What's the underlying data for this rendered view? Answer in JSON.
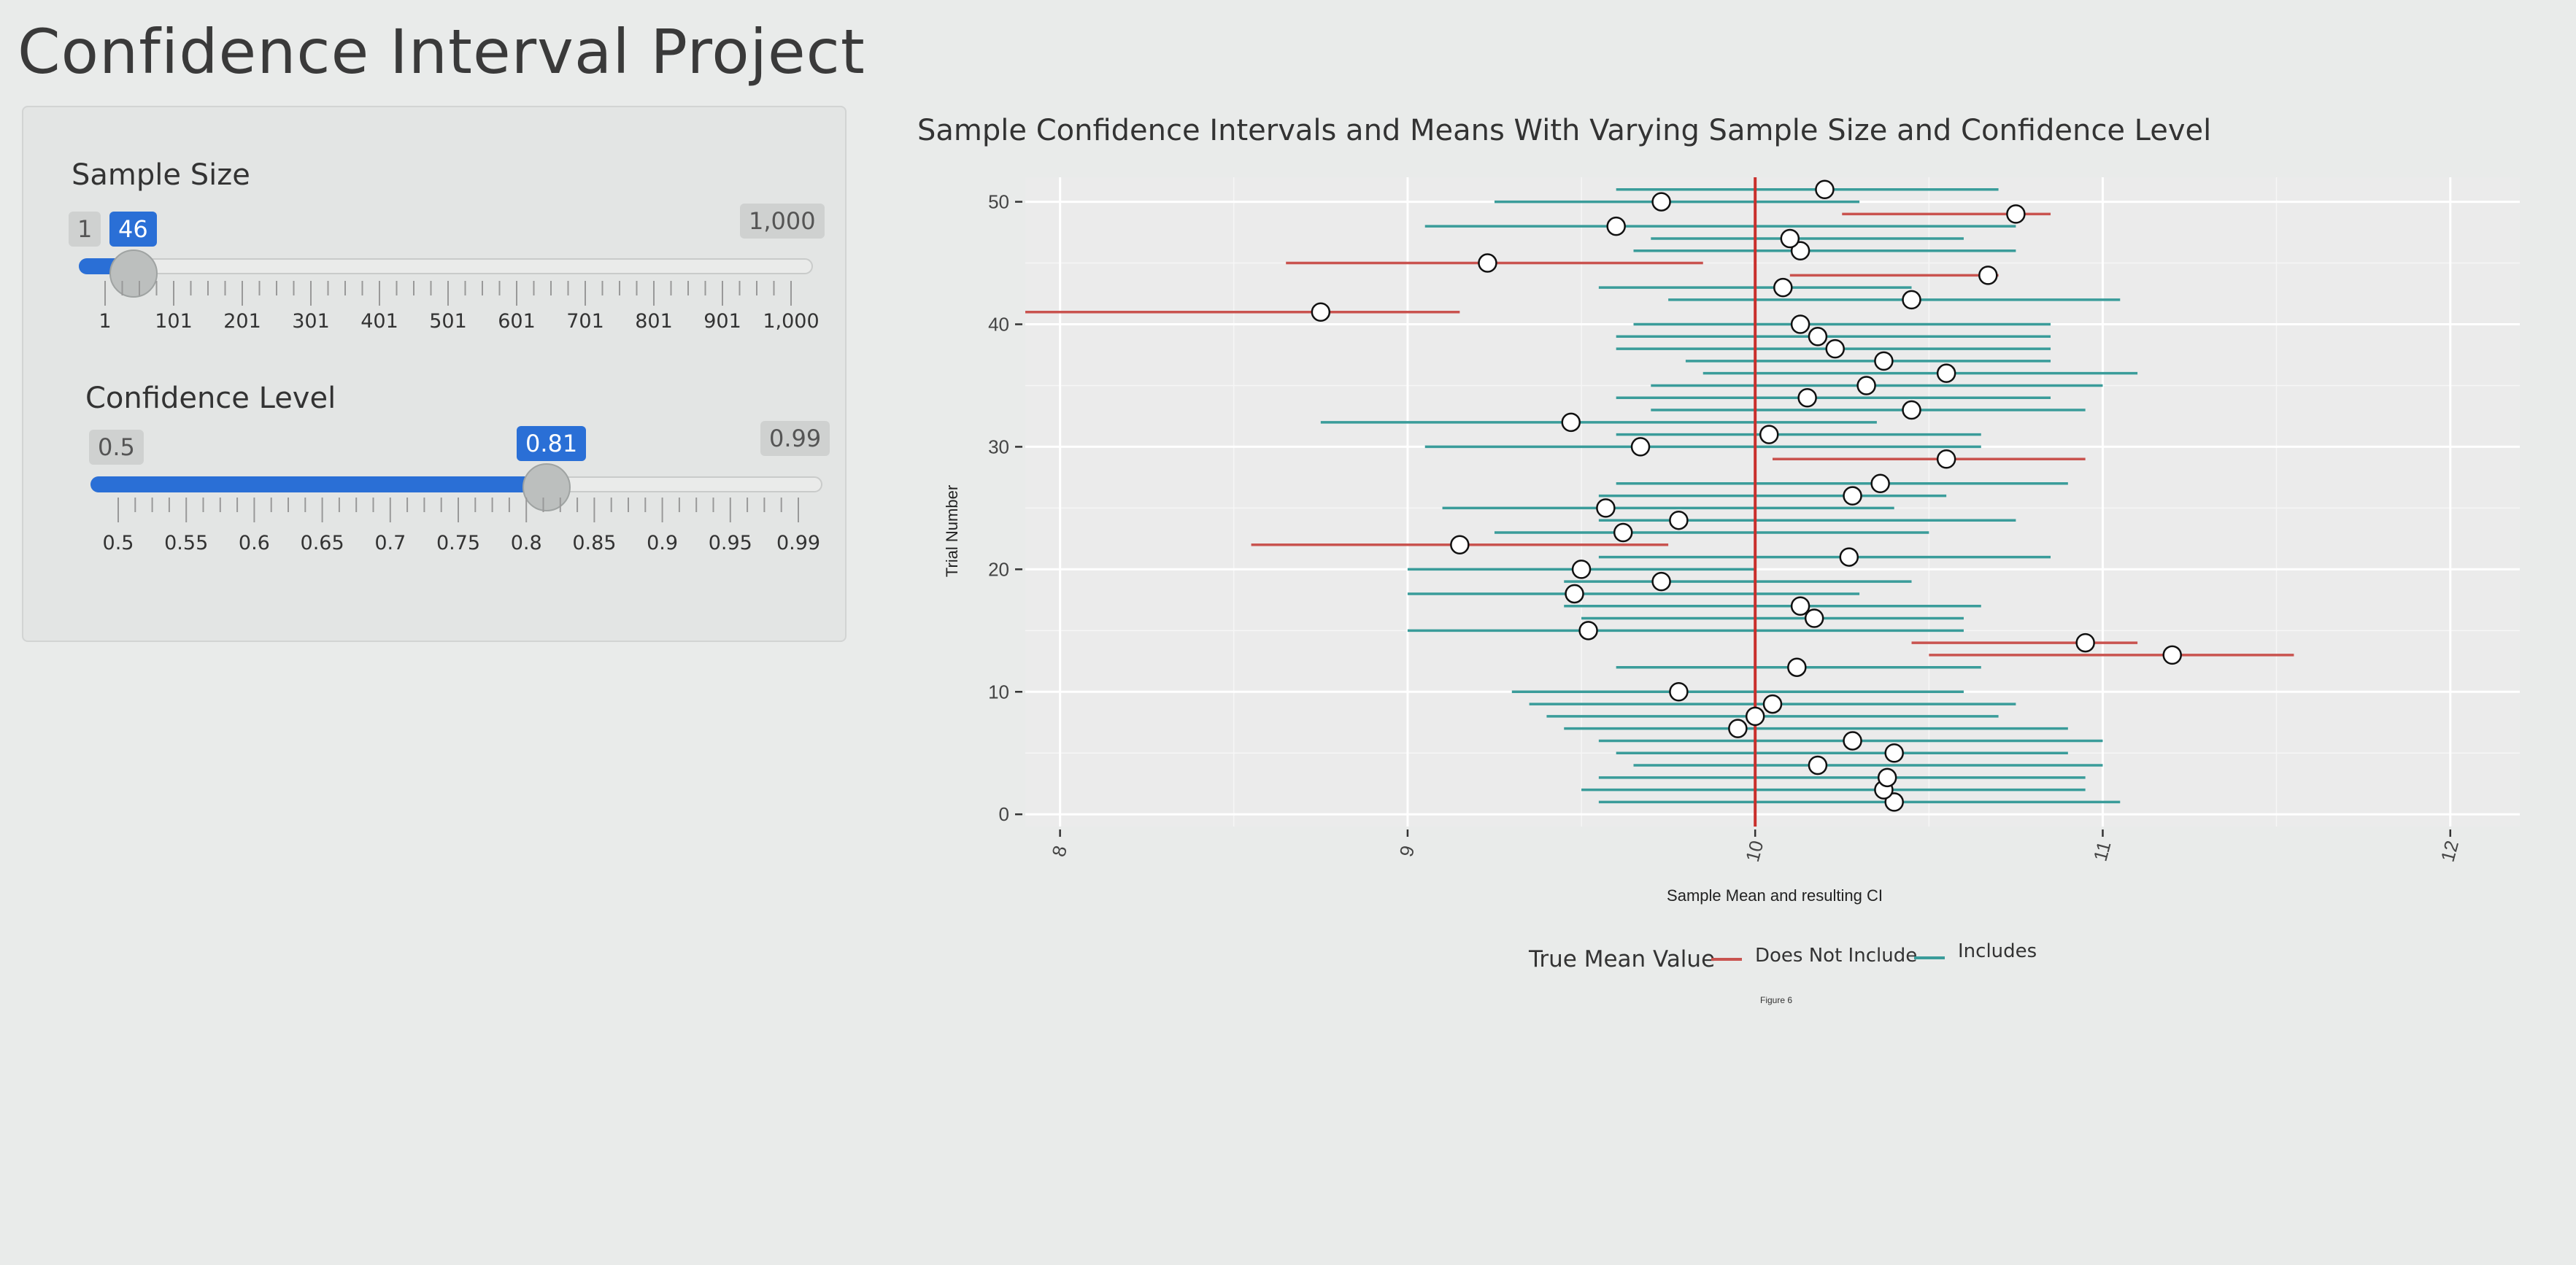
{
  "page_title": "Confidence Interval Project",
  "sample_size": {
    "label": "Sample Size",
    "min_label": "1",
    "max_label": "1,000",
    "value_label": "46",
    "value": 46,
    "min": 1,
    "max": 1000,
    "tick_labels": [
      "1",
      "101",
      "201",
      "301",
      "401",
      "501",
      "601",
      "701",
      "801",
      "901",
      "1,000"
    ]
  },
  "confidence_level": {
    "label": "Confidence Level",
    "min_label": "0.5",
    "max_label": "0.99",
    "value_label": "0.81",
    "value": 0.81,
    "min": 0.5,
    "max": 0.99,
    "tick_labels": [
      "0.5",
      "0.55",
      "0.6",
      "0.65",
      "0.7",
      "0.75",
      "0.8",
      "0.85",
      "0.9",
      "0.95",
      "0.99"
    ]
  },
  "colors": {
    "accent": "#2a6fd6",
    "includes": "#3a9c9a",
    "does_not_include": "#c9534f",
    "true_mean_line": "#c9302c"
  },
  "chart_data": {
    "type": "scatter",
    "title": "Sample Confidence Intervals and Means With Varying Sample Size and Confidence Level",
    "xlabel": "Sample Mean and resulting CI",
    "ylabel": "Trial Number",
    "caption": "Figure 6",
    "xlim": [
      7.9,
      12.2
    ],
    "ylim": [
      -1,
      52
    ],
    "x_ticks": [
      8,
      9,
      10,
      11,
      12
    ],
    "y_ticks": [
      0,
      10,
      20,
      30,
      40,
      50
    ],
    "true_mean": 10,
    "legend": {
      "title": "True Mean Value",
      "entries": [
        "Does Not Include",
        "Includes"
      ],
      "position": "bottom"
    },
    "series": [
      {
        "name": "Includes",
        "intervals": [
          [
            1,
            9.55,
            11.05,
            10.4
          ],
          [
            2,
            9.5,
            10.95,
            10.37
          ],
          [
            3,
            9.55,
            10.95,
            10.38
          ],
          [
            4,
            9.65,
            11.0,
            10.18
          ],
          [
            5,
            9.6,
            10.9,
            10.4
          ],
          [
            6,
            9.55,
            11.0,
            10.28
          ],
          [
            7,
            9.45,
            10.9,
            9.95
          ],
          [
            8,
            9.4,
            10.7,
            10.0
          ],
          [
            9,
            9.35,
            10.75,
            10.05
          ],
          [
            10,
            9.3,
            10.6,
            9.78
          ],
          [
            12,
            9.6,
            10.65,
            10.12
          ],
          [
            15,
            9.0,
            10.6,
            9.52
          ],
          [
            16,
            9.5,
            10.6,
            10.17
          ],
          [
            17,
            9.45,
            10.65,
            10.13
          ],
          [
            18,
            9.0,
            10.3,
            9.48
          ],
          [
            19,
            9.45,
            10.45,
            9.73
          ],
          [
            20,
            9.0,
            10.0,
            9.5
          ],
          [
            21,
            9.55,
            10.85,
            10.27
          ],
          [
            23,
            9.25,
            10.5,
            9.62
          ],
          [
            24,
            9.55,
            10.75,
            9.78
          ],
          [
            25,
            9.1,
            10.4,
            9.57
          ],
          [
            26,
            9.55,
            10.55,
            10.28
          ],
          [
            27,
            9.6,
            10.9,
            10.36
          ],
          [
            30,
            9.05,
            10.65,
            9.67
          ],
          [
            31,
            9.6,
            10.65,
            10.04
          ],
          [
            32,
            8.75,
            10.35,
            9.47
          ],
          [
            33,
            9.7,
            10.95,
            10.45
          ],
          [
            34,
            9.6,
            10.85,
            10.15
          ],
          [
            35,
            9.7,
            11.0,
            10.32
          ],
          [
            36,
            9.85,
            11.1,
            10.55
          ],
          [
            37,
            9.8,
            10.85,
            10.37
          ],
          [
            38,
            9.6,
            10.85,
            10.23
          ],
          [
            39,
            9.6,
            10.85,
            10.18
          ],
          [
            40,
            9.65,
            10.85,
            10.13
          ],
          [
            42,
            9.75,
            11.05,
            10.45
          ],
          [
            43,
            9.55,
            10.45,
            10.08
          ],
          [
            46,
            9.65,
            10.75,
            10.13
          ],
          [
            47,
            9.7,
            10.6,
            10.1
          ],
          [
            48,
            9.05,
            10.75,
            9.6
          ],
          [
            50,
            9.25,
            10.3,
            9.73
          ],
          [
            51,
            9.6,
            10.7,
            10.2
          ]
        ]
      },
      {
        "name": "Does Not Include",
        "intervals": [
          [
            13,
            10.5,
            11.55,
            11.2
          ],
          [
            14,
            10.45,
            11.1,
            10.95
          ],
          [
            22,
            8.55,
            9.75,
            9.15
          ],
          [
            29,
            10.05,
            10.95,
            10.55
          ],
          [
            41,
            7.9,
            9.15,
            8.75
          ],
          [
            44,
            10.1,
            10.7,
            10.67
          ],
          [
            45,
            8.65,
            9.85,
            9.23
          ],
          [
            49,
            10.25,
            10.85,
            10.75
          ]
        ]
      }
    ]
  }
}
